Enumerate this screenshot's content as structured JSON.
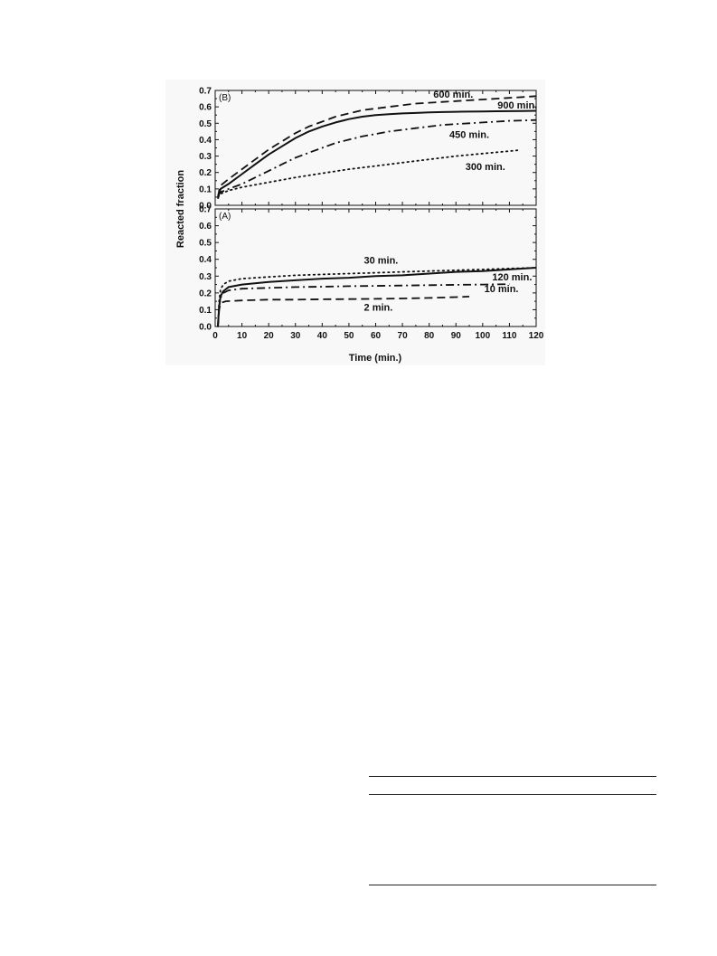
{
  "chart_data": [
    {
      "type": "line",
      "panel_label": "(B)",
      "ylabel": "Reacted fraction",
      "xlim": [
        0,
        120
      ],
      "ylim": [
        0.0,
        0.7
      ],
      "y_ticks": [
        "0.0",
        "0.1",
        "0.2",
        "0.3",
        "0.4",
        "0.5",
        "0.6",
        "0.7"
      ],
      "grid": false,
      "series": [
        {
          "name": "600 min.",
          "style": "dashed",
          "label_x": 89,
          "label_y": 0.655,
          "x": [
            1,
            1.5,
            2,
            5,
            10,
            15,
            20,
            25,
            30,
            35,
            40,
            45,
            50,
            55,
            60,
            65,
            70,
            75,
            80,
            85,
            90,
            95,
            100,
            105,
            110,
            115,
            120
          ],
          "y": [
            0.05,
            0.09,
            0.12,
            0.16,
            0.22,
            0.28,
            0.34,
            0.39,
            0.44,
            0.48,
            0.51,
            0.54,
            0.56,
            0.58,
            0.59,
            0.6,
            0.61,
            0.62,
            0.625,
            0.63,
            0.635,
            0.64,
            0.645,
            0.65,
            0.655,
            0.66,
            0.665
          ]
        },
        {
          "name": "900 min.",
          "style": "solid",
          "label_x": 113,
          "label_y": 0.59,
          "x": [
            1,
            1.5,
            2,
            5,
            10,
            15,
            20,
            25,
            30,
            35,
            40,
            45,
            50,
            55,
            60,
            65,
            70,
            75,
            80,
            85,
            90,
            95,
            100,
            105,
            110,
            115,
            120
          ],
          "y": [
            0.04,
            0.07,
            0.1,
            0.13,
            0.19,
            0.25,
            0.31,
            0.36,
            0.41,
            0.45,
            0.48,
            0.505,
            0.525,
            0.54,
            0.55,
            0.555,
            0.56,
            0.563,
            0.566,
            0.568,
            0.57,
            0.571,
            0.572,
            0.573,
            0.574,
            0.575,
            0.576
          ]
        },
        {
          "name": "450 min.",
          "style": "dashdot",
          "label_x": 95,
          "label_y": 0.41,
          "x": [
            1,
            2,
            5,
            10,
            15,
            20,
            25,
            30,
            35,
            40,
            45,
            50,
            55,
            60,
            65,
            70,
            75,
            80,
            85,
            90,
            95,
            100,
            105,
            110,
            115,
            120
          ],
          "y": [
            0.06,
            0.08,
            0.1,
            0.13,
            0.17,
            0.21,
            0.25,
            0.29,
            0.32,
            0.35,
            0.38,
            0.4,
            0.42,
            0.435,
            0.45,
            0.46,
            0.47,
            0.48,
            0.49,
            0.495,
            0.5,
            0.505,
            0.51,
            0.515,
            0.517,
            0.52
          ]
        },
        {
          "name": "300 min.",
          "style": "dotted",
          "label_x": 101,
          "label_y": 0.215,
          "x": [
            1,
            2,
            5,
            10,
            20,
            30,
            40,
            50,
            60,
            70,
            80,
            90,
            100,
            110,
            113
          ],
          "y": [
            0.05,
            0.07,
            0.09,
            0.11,
            0.14,
            0.17,
            0.195,
            0.22,
            0.24,
            0.26,
            0.28,
            0.3,
            0.315,
            0.33,
            0.335
          ]
        }
      ]
    },
    {
      "type": "line",
      "panel_label": "(A)",
      "xlabel": "Time  (min.)",
      "ylabel": "Reacted fraction",
      "xlim": [
        0,
        120
      ],
      "ylim": [
        0.0,
        0.7
      ],
      "x_ticks": [
        "0",
        "10",
        "20",
        "30",
        "40",
        "50",
        "60",
        "70",
        "80",
        "90",
        "100",
        "110",
        "120"
      ],
      "y_ticks": [
        "0.0",
        "0.1",
        "0.2",
        "0.3",
        "0.4",
        "0.5",
        "0.6",
        "0.7"
      ],
      "grid": false,
      "series": [
        {
          "name": "30 min.",
          "style": "dotted",
          "label_x": 62,
          "label_y": 0.375,
          "x": [
            1,
            1.5,
            2,
            3,
            5,
            10,
            20,
            30,
            40,
            50,
            60,
            70,
            80,
            90,
            100,
            110,
            120
          ],
          "y": [
            0.0,
            0.15,
            0.22,
            0.25,
            0.27,
            0.285,
            0.295,
            0.305,
            0.31,
            0.315,
            0.32,
            0.325,
            0.33,
            0.335,
            0.34,
            0.345,
            0.35
          ]
        },
        {
          "name": "120 min.",
          "style": "solid",
          "label_x": 111,
          "label_y": 0.275,
          "x": [
            1,
            1.5,
            2,
            3,
            5,
            10,
            20,
            30,
            40,
            50,
            60,
            70,
            80,
            90,
            100,
            110,
            120
          ],
          "y": [
            0.0,
            0.12,
            0.18,
            0.21,
            0.235,
            0.25,
            0.265,
            0.275,
            0.285,
            0.29,
            0.3,
            0.305,
            0.315,
            0.325,
            0.33,
            0.34,
            0.35
          ]
        },
        {
          "name": "10 min.",
          "style": "dashdot",
          "label_x": 107,
          "label_y": 0.205,
          "x": [
            1,
            1.5,
            2,
            3,
            5,
            10,
            20,
            30,
            40,
            50,
            60,
            70,
            80,
            90,
            100,
            110
          ],
          "y": [
            0.0,
            0.12,
            0.17,
            0.2,
            0.215,
            0.225,
            0.23,
            0.235,
            0.237,
            0.24,
            0.242,
            0.244,
            0.246,
            0.248,
            0.25,
            0.252
          ]
        },
        {
          "name": "2 min.",
          "style": "dashed",
          "label_x": 61,
          "label_y": 0.095,
          "x": [
            1,
            1.5,
            2,
            4,
            10,
            20,
            30,
            40,
            50,
            60,
            70,
            80,
            90,
            95
          ],
          "y": [
            0.0,
            0.1,
            0.14,
            0.15,
            0.155,
            0.16,
            0.16,
            0.162,
            0.163,
            0.165,
            0.167,
            0.17,
            0.175,
            0.178
          ]
        }
      ]
    }
  ]
}
